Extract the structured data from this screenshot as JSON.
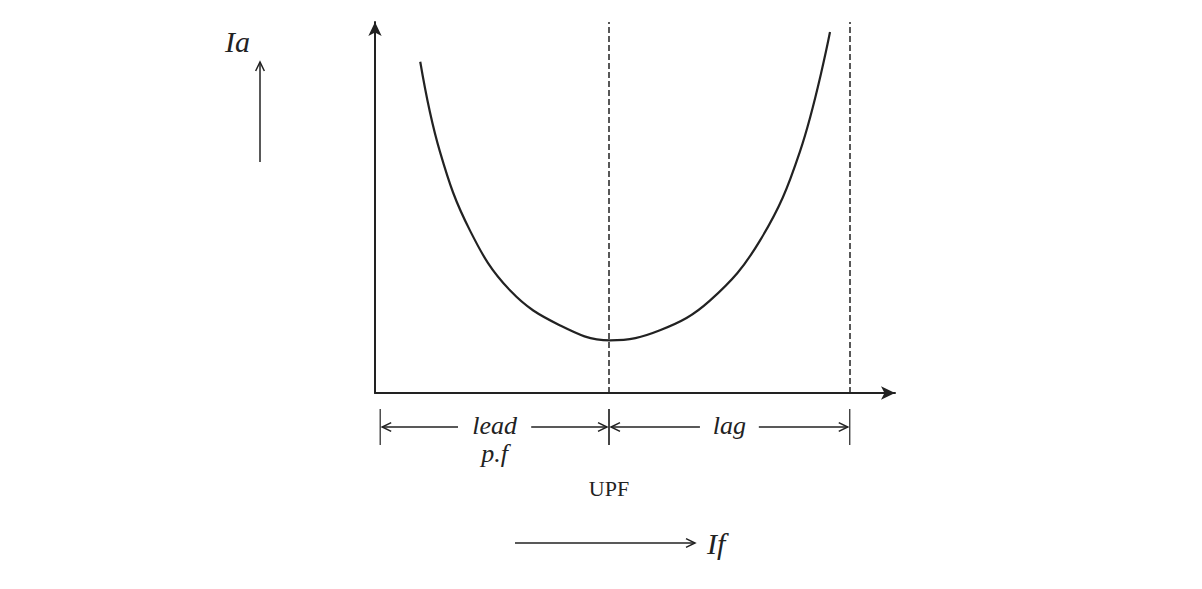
{
  "chart_data": {
    "type": "line",
    "xlabel": "If",
    "ylabel": "Ia",
    "x": [
      0.87,
      1.25,
      1.83,
      2.6,
      3.56,
      4.52,
      5.48,
      6.44,
      7.4,
      8.17,
      8.75
    ],
    "values": [
      8.93,
      6.5,
      4.37,
      2.76,
      1.82,
      1.42,
      1.69,
      2.49,
      4.1,
      6.5,
      9.73
    ],
    "color": "#222222",
    "xlim": [
      0,
      10
    ],
    "ylim": [
      0,
      10
    ],
    "tick_labels": false,
    "grid": false,
    "reference_lines": [
      {
        "x": 4.5,
        "line_style": "dashed"
      },
      {
        "x": 9.13,
        "line_style": "dashed"
      }
    ],
    "regions": [
      {
        "label": "lead p.f",
        "x": [
          0.1,
          4.5
        ]
      },
      {
        "label": "lag",
        "x": [
          4.5,
          9.13
        ]
      }
    ],
    "annotations": [
      {
        "text": "UPF",
        "x": 4.5
      }
    ]
  }
}
